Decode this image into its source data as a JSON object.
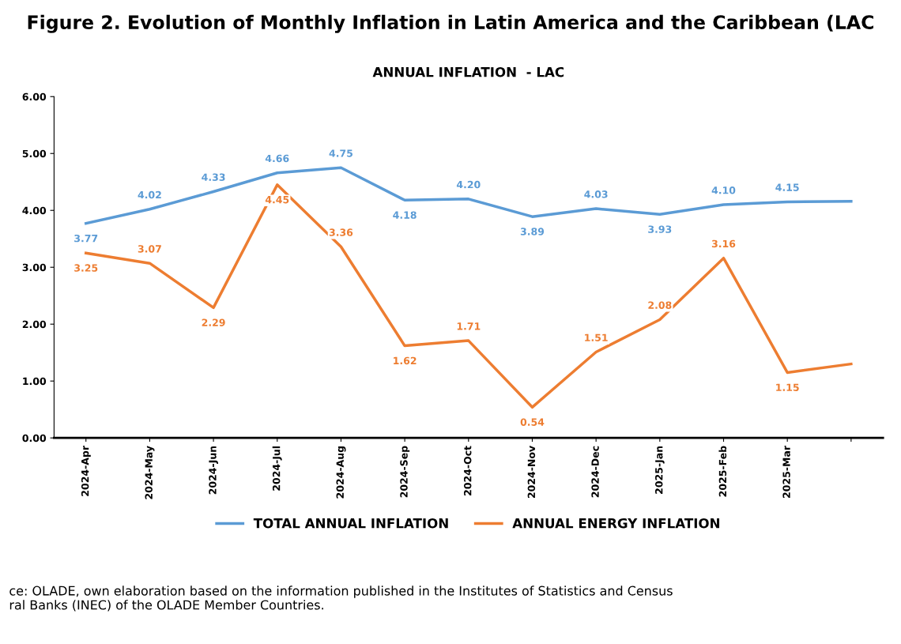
{
  "chart_data": {
    "type": "line",
    "title": "Figure 2. Evolution of Monthly Inflation in Latin America and the Caribbean (LAC",
    "subtitle": "ANNUAL INFLATION  - LAC",
    "categories": [
      "2024-Apr",
      "2024-May",
      "2024-Jun",
      "2024-Jul",
      "2024-Aug",
      "2024-Sep",
      "2024-Oct",
      "2024-Nov",
      "2024-Dec",
      "2025-Jan",
      "2025-Feb",
      "2025-Mar",
      null
    ],
    "series": [
      {
        "name": "TOTAL ANNUAL INFLATION",
        "color": "#5b9bd5",
        "values": [
          3.77,
          4.02,
          4.33,
          4.66,
          4.75,
          4.18,
          4.2,
          3.89,
          4.03,
          3.93,
          4.1,
          4.15,
          4.16
        ],
        "value_labels": [
          "3.77",
          "4.02",
          "4.33",
          "4.66",
          "4.75",
          "4.18",
          "4.20",
          "3.89",
          "4.03",
          "3.93",
          "4.10",
          "4.15",
          null
        ]
      },
      {
        "name": "ANNUAL ENERGY INFLATION",
        "color": "#ed7d31",
        "values": [
          3.25,
          3.07,
          2.29,
          4.45,
          3.36,
          1.62,
          1.71,
          0.54,
          1.51,
          2.08,
          3.16,
          1.15,
          1.3
        ],
        "value_labels": [
          "3.25",
          "3.07",
          "2.29",
          "4.45",
          "3.36",
          "1.62",
          "1.71",
          "0.54",
          "1.51",
          "2.08",
          "3.16",
          "1.15",
          null
        ]
      }
    ],
    "ylim": [
      0,
      6
    ],
    "yticks": [
      {
        "value": 0,
        "label": "0.00"
      },
      {
        "value": 1,
        "label": "1.00"
      },
      {
        "value": 2,
        "label": "2.00"
      },
      {
        "value": 3,
        "label": "3.00"
      },
      {
        "value": 4,
        "label": "4.00"
      },
      {
        "value": 5,
        "label": "5.00"
      },
      {
        "value": 6,
        "label": "6.00"
      }
    ],
    "legend": "bottom",
    "grid": false,
    "marker": "none",
    "line_style": "solid",
    "annotations": [
      "ce: OLADE, own elaboration based on the information published in the Institutes of Statistics and Census\nral Banks (INEC) of the OLADE Member Countries."
    ]
  }
}
